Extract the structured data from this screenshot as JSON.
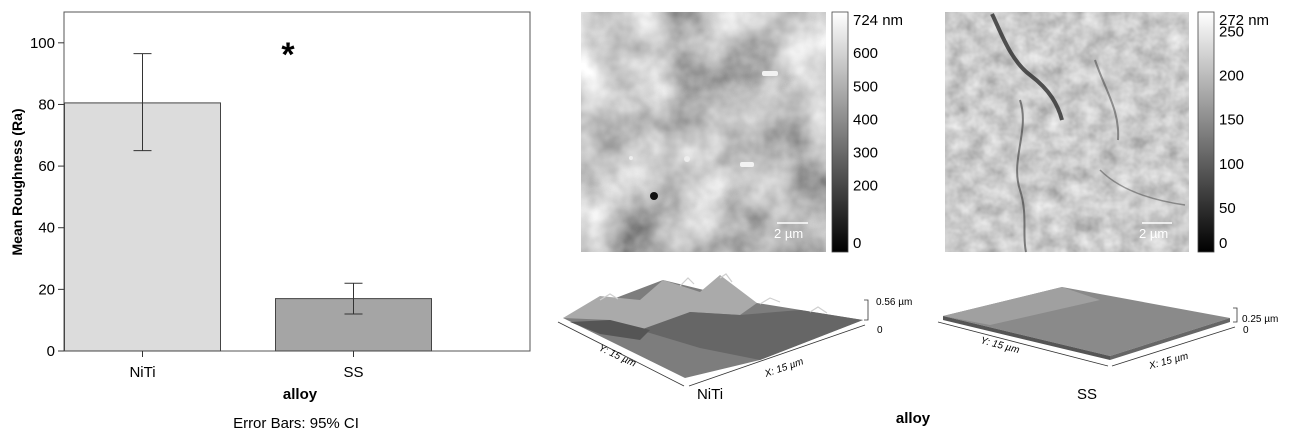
{
  "chart_data": [
    {
      "type": "bar",
      "categories": [
        "NiTi",
        "SS"
      ],
      "values": [
        80.5,
        17
      ],
      "error_bars": [
        {
          "low": 65,
          "high": 96.5
        },
        {
          "low": 12,
          "high": 22
        }
      ],
      "error_bar_caption": "Error Bars: 95% CI",
      "xlabel": "alloy",
      "ylabel": "Mean Roughness (Ra)",
      "ylim": [
        0,
        110
      ],
      "yticks": [
        0,
        20,
        40,
        60,
        80,
        100
      ],
      "annotation": "*",
      "colors": [
        "#dcdcdc",
        "#a5a5a5"
      ],
      "grid": false
    },
    {
      "type": "heatmap",
      "panel": "NiTi AFM height map",
      "colorbar_max_label": "724 nm",
      "colorbar_ticks": [
        600,
        500,
        400,
        300,
        200,
        0
      ],
      "colorbar_range": [
        0,
        724
      ],
      "scale_bar_label": "2 µm",
      "surface_3d": {
        "z_label": "0.56 µm",
        "z_zero": "0",
        "y_label": "Y: 15 µm",
        "x_label": "X: 15 µm"
      },
      "category": "NiTi"
    },
    {
      "type": "heatmap",
      "panel": "SS AFM height map",
      "colorbar_max_label": "272 nm",
      "colorbar_ticks": [
        250,
        200,
        150,
        100,
        50,
        0
      ],
      "colorbar_range": [
        0,
        272
      ],
      "scale_bar_label": "2 µm",
      "surface_3d": {
        "z_label": "0.25 µm",
        "z_zero": "0",
        "y_label": "Y: 15 µm",
        "x_label": "X: 15 µm"
      },
      "category": "SS"
    }
  ],
  "images_xlabel": "alloy"
}
